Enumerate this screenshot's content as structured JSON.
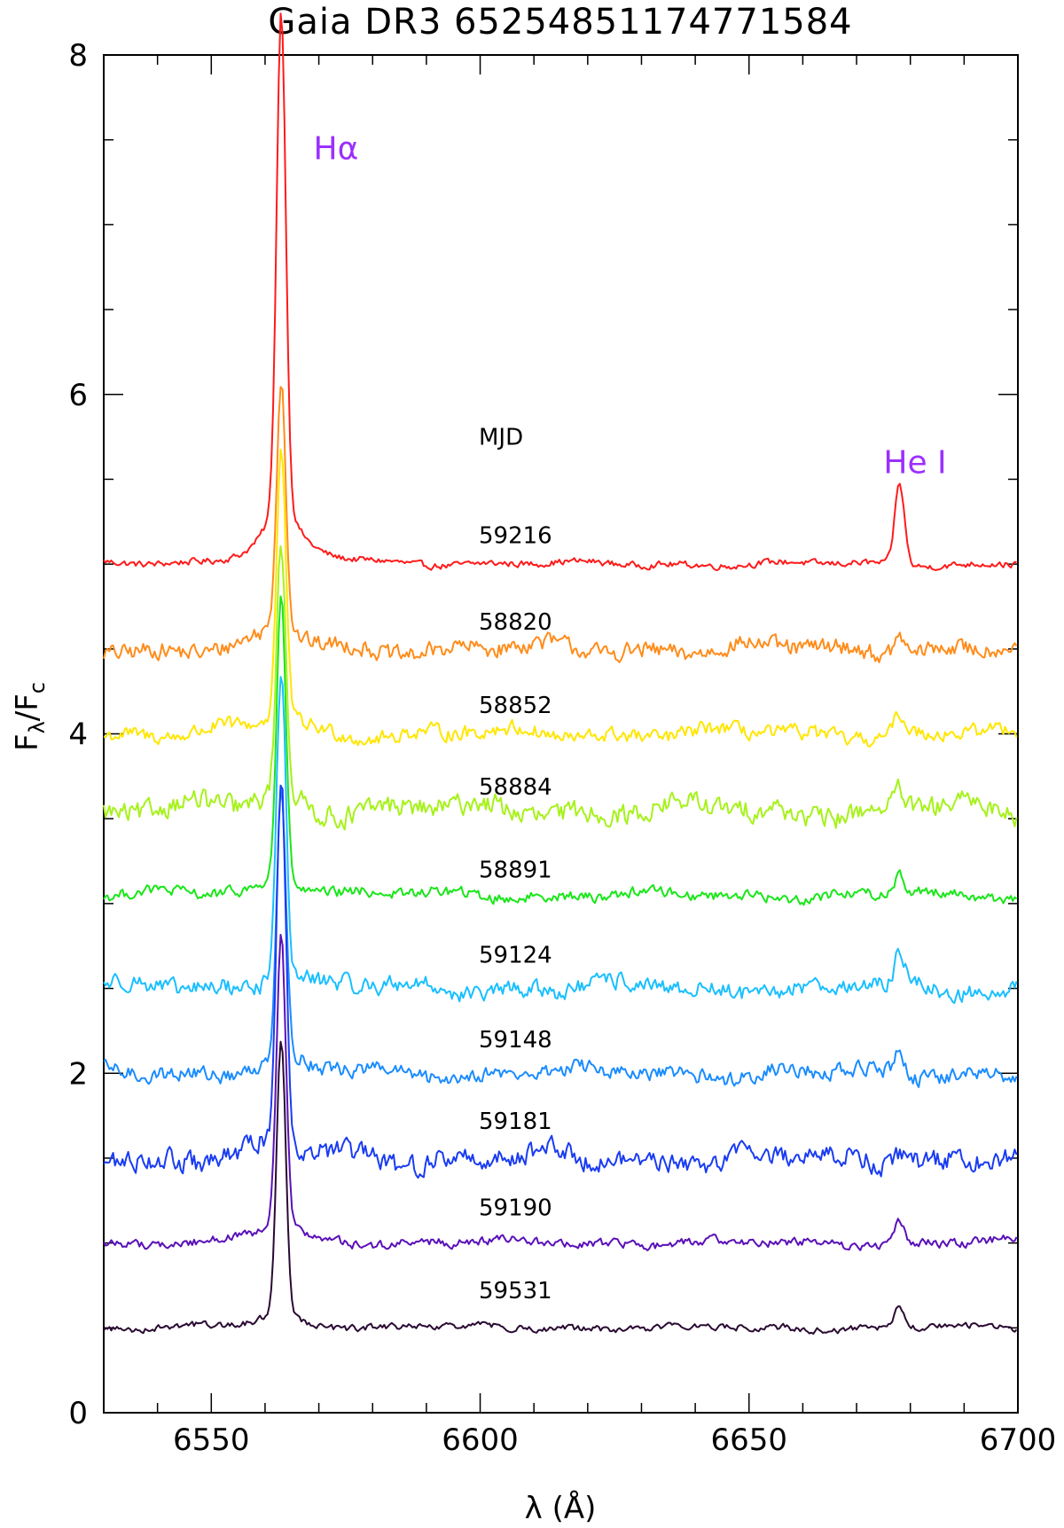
{
  "chart_data": {
    "type": "line",
    "title": "Gaia DR3 6525485117477158‌4",
    "xlabel": "λ (Å)",
    "ylabel_main": "F",
    "ylabel_sub1": "λ",
    "ylabel_mid": "/F",
    "ylabel_sub2": "c",
    "xlim": [
      6530,
      6700
    ],
    "ylim": [
      0,
      8
    ],
    "xticks": [
      6550,
      6600,
      6650,
      6700
    ],
    "yticks": [
      0,
      2,
      4,
      6,
      8
    ],
    "xtick_labels": [
      "6550",
      "6600",
      "6650",
      "6700"
    ],
    "ytick_labels": [
      "0",
      "2",
      "4",
      "6",
      "8"
    ],
    "mjd_header": "MJD",
    "line_labels": [
      {
        "text": "Hα",
        "x": 6569,
        "y": 7.45,
        "color": "#9b30ff"
      },
      {
        "text": "He I",
        "x": 6675,
        "y": 5.6,
        "color": "#9b30ff"
      }
    ],
    "halpha_center": 6563,
    "hei_center": 6678,
    "series": [
      {
        "name": "59216",
        "color": "#ff1a1a",
        "offset": 5.0,
        "peak": 2.9,
        "wing": 0.35,
        "he_peak": 0.48,
        "noise": 0.03,
        "label_y": 5.17
      },
      {
        "name": "58820",
        "color": "#ff8c1a",
        "offset": 4.5,
        "peak": 1.45,
        "wing": 0.12,
        "he_peak": 0.12,
        "noise": 0.08,
        "label_y": 4.66
      },
      {
        "name": "58852",
        "color": "#ffe600",
        "offset": 4.0,
        "peak": 1.55,
        "wing": 0.12,
        "he_peak": 0.12,
        "noise": 0.07,
        "label_y": 4.17
      },
      {
        "name": "58884",
        "color": "#a6f21a",
        "offset": 3.55,
        "peak": 1.45,
        "wing": 0.12,
        "he_peak": 0.1,
        "noise": 0.1,
        "label_y": 3.69
      },
      {
        "name": "58891",
        "color": "#1ae61a",
        "offset": 3.05,
        "peak": 1.65,
        "wing": 0.12,
        "he_peak": 0.12,
        "noise": 0.05,
        "label_y": 3.2
      },
      {
        "name": "59124",
        "color": "#1abfff",
        "offset": 2.5,
        "peak": 1.8,
        "wing": 0.12,
        "he_peak": 0.2,
        "noise": 0.08,
        "label_y": 2.7
      },
      {
        "name": "59148",
        "color": "#1a8cff",
        "offset": 2.0,
        "peak": 1.55,
        "wing": 0.12,
        "he_peak": 0.15,
        "noise": 0.07,
        "label_y": 2.2
      },
      {
        "name": "59181",
        "color": "#1a3cf2",
        "offset": 1.5,
        "peak": 2.1,
        "wing": 0.12,
        "he_peak": 0.08,
        "noise": 0.1,
        "label_y": 1.72
      },
      {
        "name": "59190",
        "color": "#5a10b8",
        "offset": 1.0,
        "peak": 1.7,
        "wing": 0.12,
        "he_peak": 0.13,
        "noise": 0.04,
        "label_y": 1.21
      },
      {
        "name": "59531",
        "color": "#2a0a33",
        "offset": 0.5,
        "peak": 1.6,
        "wing": 0.1,
        "he_peak": 0.12,
        "noise": 0.03,
        "label_y": 0.72
      }
    ]
  }
}
